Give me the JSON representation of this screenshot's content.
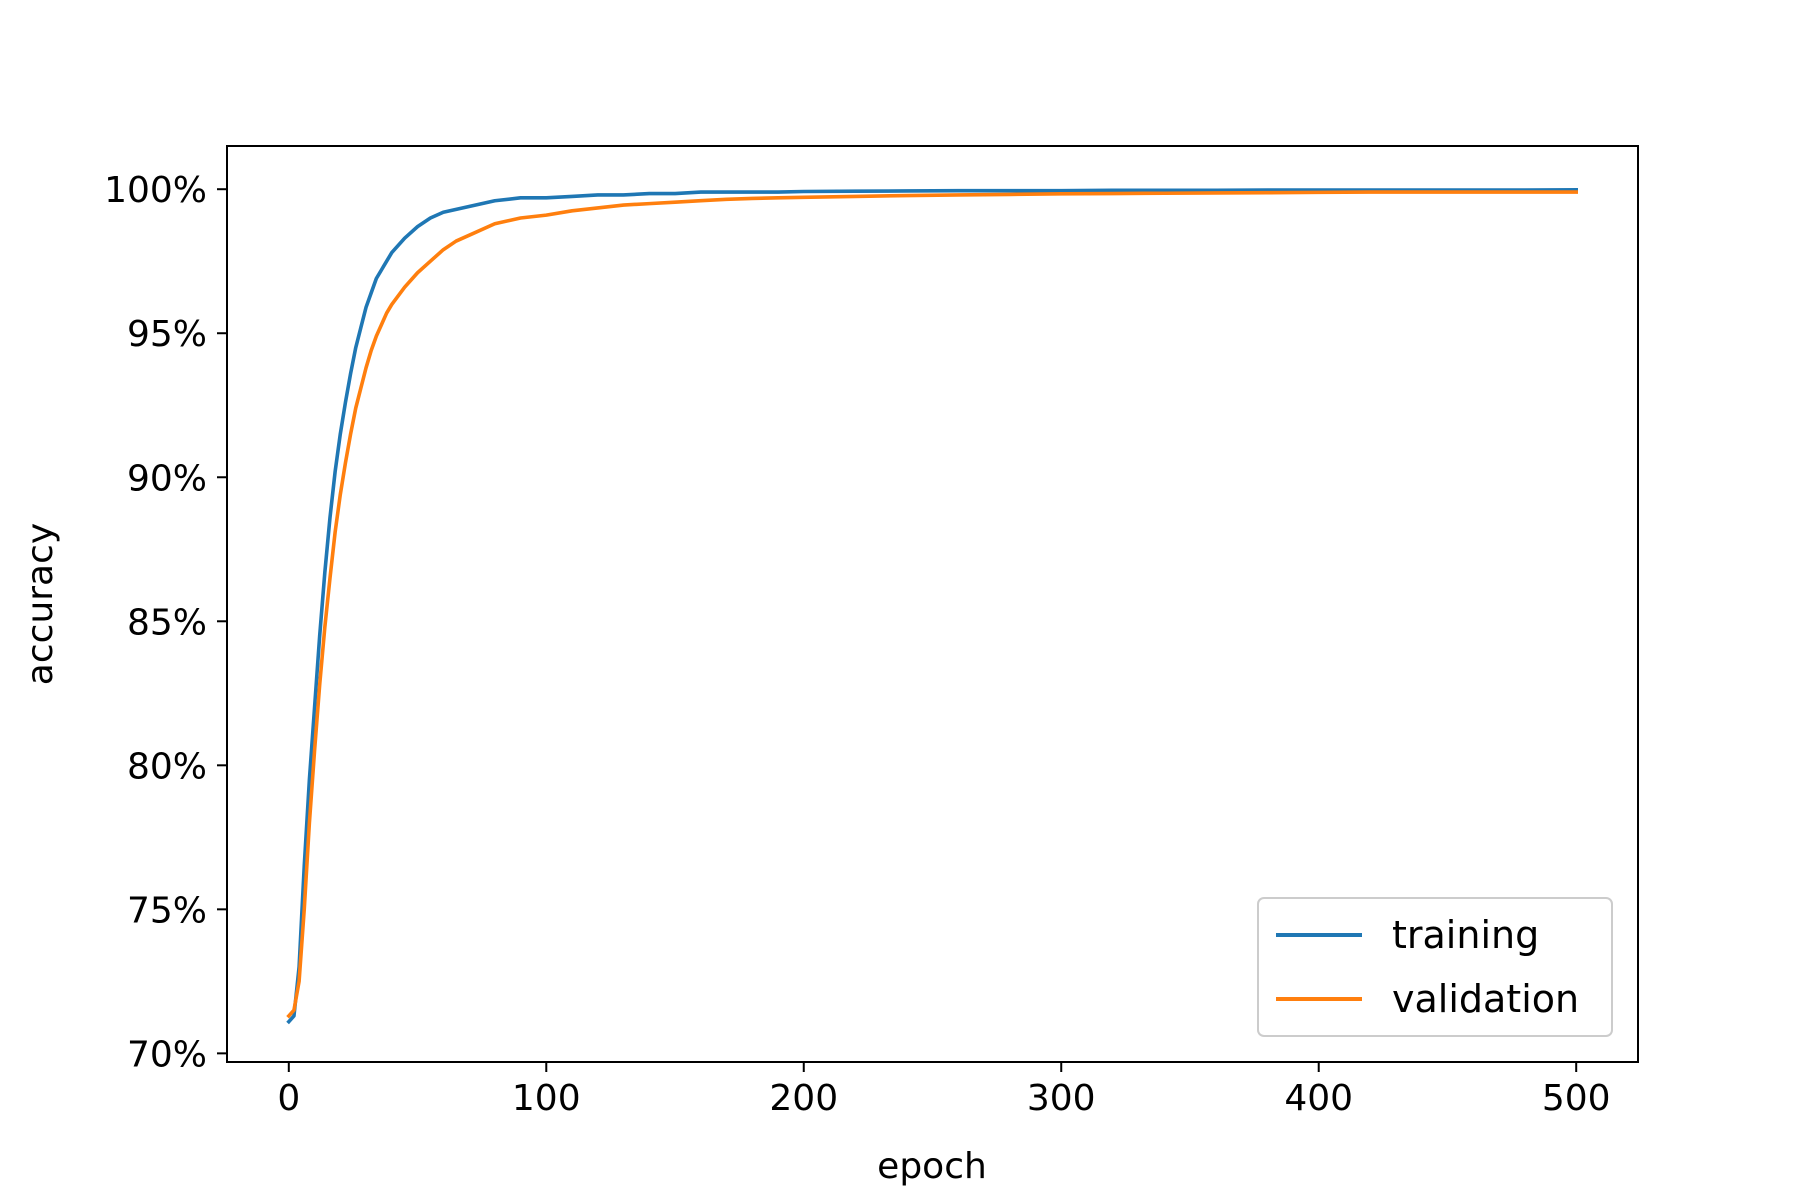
{
  "chart_data": {
    "type": "line",
    "title": "",
    "xlabel": "epoch",
    "ylabel": "accuracy",
    "xlim": [
      -24,
      524
    ],
    "ylim": [
      69.7,
      101.5
    ],
    "x_ticks": [
      0,
      100,
      200,
      300,
      400,
      500
    ],
    "x_tick_labels": [
      "0",
      "100",
      "200",
      "300",
      "400",
      "500"
    ],
    "y_ticks": [
      70,
      75,
      80,
      85,
      90,
      95,
      100
    ],
    "y_tick_labels": [
      "70%",
      "75%",
      "80%",
      "85%",
      "90%",
      "95%",
      "100%"
    ],
    "grid": false,
    "legend_position": "lower-right",
    "series": [
      {
        "name": "training",
        "color": "#1f77b4",
        "x": [
          0,
          2,
          4,
          6,
          8,
          10,
          12,
          14,
          16,
          18,
          20,
          22,
          24,
          26,
          28,
          30,
          32,
          34,
          36,
          38,
          40,
          45,
          50,
          55,
          60,
          65,
          70,
          80,
          90,
          100,
          110,
          120,
          130,
          140,
          150,
          160,
          170,
          180,
          190,
          200,
          220,
          240,
          260,
          280,
          300,
          320,
          340,
          360,
          380,
          400,
          420,
          440,
          460,
          480,
          500
        ],
        "y": [
          71.1,
          71.3,
          73.0,
          76.5,
          79.5,
          82.0,
          84.5,
          86.7,
          88.6,
          90.2,
          91.5,
          92.6,
          93.6,
          94.5,
          95.2,
          95.9,
          96.4,
          96.9,
          97.2,
          97.5,
          97.8,
          98.3,
          98.7,
          99.0,
          99.2,
          99.3,
          99.4,
          99.6,
          99.7,
          99.7,
          99.75,
          99.8,
          99.8,
          99.85,
          99.85,
          99.9,
          99.9,
          99.9,
          99.9,
          99.92,
          99.93,
          99.94,
          99.95,
          99.95,
          99.95,
          99.96,
          99.96,
          99.96,
          99.97,
          99.97,
          99.97,
          99.97,
          99.97,
          99.97,
          99.98
        ]
      },
      {
        "name": "validation",
        "color": "#ff7f0e",
        "x": [
          0,
          2,
          4,
          6,
          8,
          10,
          12,
          14,
          16,
          18,
          20,
          22,
          24,
          26,
          28,
          30,
          32,
          34,
          36,
          38,
          40,
          45,
          50,
          55,
          60,
          65,
          70,
          80,
          90,
          100,
          110,
          120,
          130,
          140,
          150,
          160,
          170,
          180,
          190,
          200,
          220,
          240,
          260,
          280,
          300,
          320,
          340,
          360,
          380,
          400,
          420,
          440,
          460,
          480,
          500
        ],
        "y": [
          71.3,
          71.5,
          72.5,
          75.0,
          78.0,
          80.5,
          82.8,
          84.8,
          86.5,
          88.1,
          89.4,
          90.5,
          91.5,
          92.4,
          93.1,
          93.8,
          94.4,
          94.9,
          95.3,
          95.7,
          96.0,
          96.6,
          97.1,
          97.5,
          97.9,
          98.2,
          98.4,
          98.8,
          99.0,
          99.1,
          99.25,
          99.35,
          99.45,
          99.5,
          99.55,
          99.6,
          99.65,
          99.68,
          99.7,
          99.72,
          99.75,
          99.78,
          99.8,
          99.82,
          99.84,
          99.85,
          99.86,
          99.87,
          99.88,
          99.89,
          99.9,
          99.9,
          99.9,
          99.9,
          99.9
        ]
      }
    ]
  }
}
